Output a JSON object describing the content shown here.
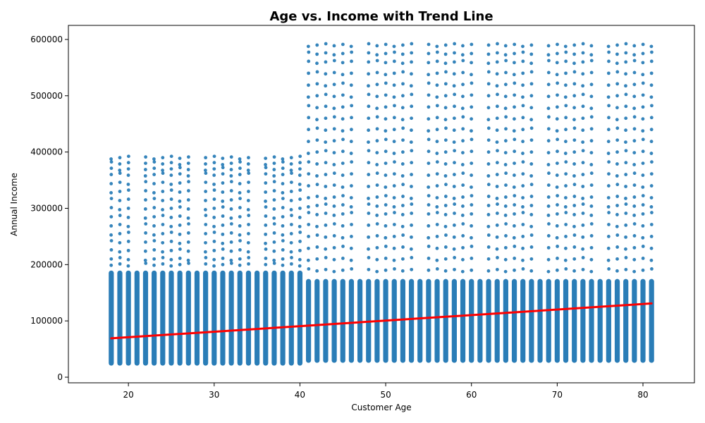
{
  "chart_data": {
    "type": "scatter",
    "title": "Age vs. Income with Trend Line",
    "xlabel": "Customer Age",
    "ylabel": "Annual Income",
    "xlim": [
      13,
      86
    ],
    "ylim": [
      -10000,
      625000
    ],
    "x_ticks": [
      20,
      30,
      40,
      50,
      60,
      70,
      80
    ],
    "y_ticks": [
      0,
      100000,
      200000,
      300000,
      400000,
      500000,
      600000
    ],
    "grid": false,
    "legend": "none",
    "colors": {
      "points": "#1f77b4",
      "trend": "#ff0000"
    },
    "series": [
      {
        "kind": "scatter",
        "x_range": [
          18,
          81
        ],
        "age_groups": [
          {
            "ages": [
              18,
              40
            ],
            "dense_band": [
              25000,
              185000
            ],
            "upper_points": [
              200000,
              210000,
              225000,
              240000,
              255000,
              270000,
              285000,
              300000,
              315000,
              330000,
              345000,
              360000,
              370000,
              380000,
              390000
            ]
          },
          {
            "ages": [
              41,
              81
            ],
            "dense_band": [
              30000,
              170000
            ],
            "upper_points": [
              190000,
              210000,
              230000,
              250000,
              270000,
              290000,
              305000,
              320000,
              340000,
              360000,
              380000,
              400000,
              420000,
              440000,
              460000,
              480000,
              500000,
              520000,
              540000,
              560000,
              575000,
              590000
            ]
          }
        ]
      },
      {
        "kind": "line",
        "x": [
          18,
          81
        ],
        "y": [
          69000,
          131000
        ]
      }
    ]
  }
}
